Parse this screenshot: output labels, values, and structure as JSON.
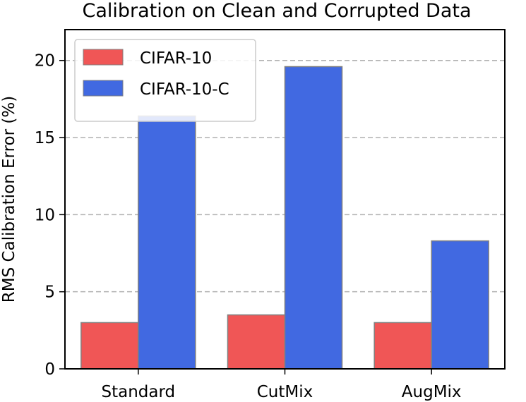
{
  "chart_data": {
    "type": "bar",
    "title": "Calibration on Clean and Corrupted Data",
    "xlabel": "",
    "ylabel": "RMS Calibration Error (%)",
    "categories": [
      "Standard",
      "CutMix",
      "AugMix"
    ],
    "series": [
      {
        "name": "CIFAR-10",
        "values": [
          3.0,
          3.5,
          3.0
        ],
        "color": "#f05656"
      },
      {
        "name": "CIFAR-10-C",
        "values": [
          16.4,
          19.6,
          8.3
        ],
        "color": "#4169e1"
      }
    ],
    "ylim": [
      0,
      22
    ],
    "yticks": [
      0,
      5,
      10,
      15,
      20
    ],
    "grid": true,
    "grid_axis": "y",
    "legend_position": "upper-left"
  }
}
